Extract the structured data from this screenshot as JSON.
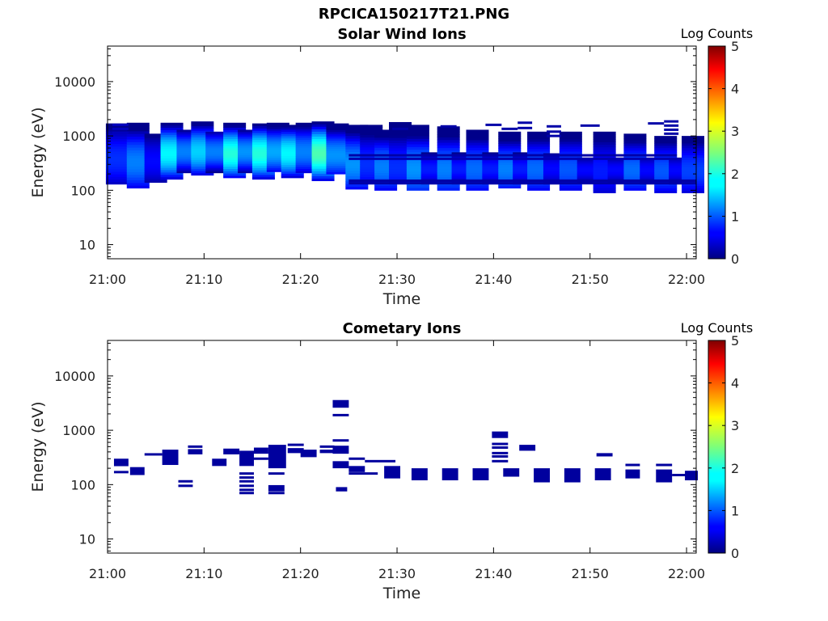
{
  "figure": {
    "title": "RPCICA150217T21.PNG"
  },
  "colors": {
    "axis": "#000000",
    "colorbar_map": "jet"
  },
  "chart_data": [
    {
      "type": "heatmap",
      "title": "Solar Wind Ions",
      "xlabel": "Time",
      "ylabel": "Energy (eV)",
      "xlim": [
        "21:00",
        "22:01"
      ],
      "x_ticks": [
        "21:00",
        "21:10",
        "21:20",
        "21:30",
        "21:40",
        "21:50",
        "22:00"
      ],
      "y_scale": "log",
      "ylim": [
        5.5,
        45000
      ],
      "y_ticks": [
        10,
        100,
        1000,
        10000
      ],
      "y_tick_labels": [
        "10",
        "100",
        "1000",
        "10000"
      ],
      "colorbar": {
        "label": "Log Counts",
        "range": [
          0,
          5
        ],
        "ticks": [
          "0",
          "1",
          "2",
          "3",
          "4",
          "5"
        ]
      },
      "columns": [
        {
          "t": "21:01:00",
          "e_min": 130,
          "e_max": 1700,
          "peak_e": 380,
          "peak": 0.8
        },
        {
          "t": "21:03:10",
          "e_min": 110,
          "e_max": 1750,
          "peak_e": 330,
          "peak": 1.2
        },
        {
          "t": "21:05:00",
          "e_min": 140,
          "e_max": 1100,
          "peak_e": 350,
          "peak": 0.6
        },
        {
          "t": "21:06:40",
          "e_min": 160,
          "e_max": 1750,
          "peak_e": 480,
          "peak": 1.8
        },
        {
          "t": "21:08:20",
          "e_min": 210,
          "e_max": 1300,
          "peak_e": 520,
          "peak": 1.2
        },
        {
          "t": "21:09:50",
          "e_min": 190,
          "e_max": 1850,
          "peak_e": 520,
          "peak": 1.6
        },
        {
          "t": "21:11:20",
          "e_min": 210,
          "e_max": 1200,
          "peak_e": 520,
          "peak": 1.2
        },
        {
          "t": "21:13:10",
          "e_min": 170,
          "e_max": 1750,
          "peak_e": 480,
          "peak": 2.0
        },
        {
          "t": "21:14:40",
          "e_min": 210,
          "e_max": 1300,
          "peak_e": 520,
          "peak": 1.3
        },
        {
          "t": "21:16:10",
          "e_min": 160,
          "e_max": 1700,
          "peak_e": 480,
          "peak": 2.0
        },
        {
          "t": "21:17:40",
          "e_min": 220,
          "e_max": 1750,
          "peak_e": 520,
          "peak": 1.4
        },
        {
          "t": "21:19:10",
          "e_min": 170,
          "e_max": 1600,
          "peak_e": 480,
          "peak": 1.8
        },
        {
          "t": "21:20:40",
          "e_min": 210,
          "e_max": 1750,
          "peak_e": 520,
          "peak": 1.2
        },
        {
          "t": "21:22:20",
          "e_min": 150,
          "e_max": 1850,
          "peak_e": 480,
          "peak": 2.2
        },
        {
          "t": "21:23:50",
          "e_min": 200,
          "e_max": 1700,
          "peak_e": 450,
          "peak": 1.3
        },
        {
          "t": "21:25:50",
          "e_min": 105,
          "e_max": 1600,
          "peak_e": 300,
          "peak": 1.3
        },
        {
          "t": "21:27:20",
          "e_min": 130,
          "e_max": 1600,
          "peak_e": 300,
          "peak": 0.8
        },
        {
          "t": "21:28:50",
          "e_min": 100,
          "e_max": 1300,
          "peak_e": 270,
          "peak": 1.2
        },
        {
          "t": "21:30:20",
          "e_min": 130,
          "e_max": 1800,
          "peak_e": 270,
          "peak": 0.8
        },
        {
          "t": "21:32:10",
          "e_min": 100,
          "e_max": 1600,
          "peak_e": 250,
          "peak": 1.3
        },
        {
          "t": "21:33:40",
          "e_min": 130,
          "e_max": 500,
          "peak_e": 250,
          "peak": 0.7
        },
        {
          "t": "21:35:20",
          "e_min": 100,
          "e_max": 1500,
          "peak_e": 250,
          "peak": 1.2
        },
        {
          "t": "21:36:50",
          "e_min": 130,
          "e_max": 500,
          "peak_e": 250,
          "peak": 0.7
        },
        {
          "t": "21:38:20",
          "e_min": 100,
          "e_max": 1300,
          "peak_e": 250,
          "peak": 1.1
        },
        {
          "t": "21:40:00",
          "e_min": 130,
          "e_max": 500,
          "peak_e": 250,
          "peak": 0.7
        },
        {
          "t": "21:41:40",
          "e_min": 110,
          "e_max": 1200,
          "peak_e": 250,
          "peak": 1.2
        },
        {
          "t": "21:43:10",
          "e_min": 130,
          "e_max": 500,
          "peak_e": 250,
          "peak": 0.7
        },
        {
          "t": "21:44:40",
          "e_min": 100,
          "e_max": 1200,
          "peak_e": 250,
          "peak": 1.1
        },
        {
          "t": "21:46:20",
          "e_min": 130,
          "e_max": 480,
          "peak_e": 250,
          "peak": 0.6
        },
        {
          "t": "21:48:00",
          "e_min": 100,
          "e_max": 1200,
          "peak_e": 250,
          "peak": 1.0
        },
        {
          "t": "21:49:50",
          "e_min": 140,
          "e_max": 400,
          "peak_e": 240,
          "peak": 0.6
        },
        {
          "t": "21:51:30",
          "e_min": 90,
          "e_max": 1200,
          "peak_e": 230,
          "peak": 0.7
        },
        {
          "t": "21:53:00",
          "e_min": 140,
          "e_max": 400,
          "peak_e": 240,
          "peak": 0.6
        },
        {
          "t": "21:54:40",
          "e_min": 100,
          "e_max": 1100,
          "peak_e": 240,
          "peak": 1.1
        },
        {
          "t": "21:56:20",
          "e_min": 130,
          "e_max": 400,
          "peak_e": 240,
          "peak": 0.6
        },
        {
          "t": "21:57:50",
          "e_min": 90,
          "e_max": 1000,
          "peak_e": 230,
          "peak": 1.0
        },
        {
          "t": "21:59:20",
          "e_min": 130,
          "e_max": 400,
          "peak_e": 240,
          "peak": 0.6
        },
        {
          "t": "22:00:40",
          "e_min": 90,
          "e_max": 1000,
          "peak_e": 230,
          "peak": 0.9
        }
      ],
      "lines": [
        {
          "t0": "21:00:30",
          "t1": "21:02:10",
          "e": 1600,
          "v": 0.3
        },
        {
          "t0": "21:00:30",
          "t1": "21:02:10",
          "e": 1350,
          "v": 0.3
        },
        {
          "t0": "21:00:30",
          "t1": "21:02:10",
          "e": 1150,
          "v": 0.3
        },
        {
          "t0": "21:29:30",
          "t1": "21:31:10",
          "e": 1350,
          "v": 0.2
        },
        {
          "t0": "21:34:30",
          "t1": "21:36:10",
          "e": 1500,
          "v": 0.2
        },
        {
          "t0": "21:39:10",
          "t1": "21:40:50",
          "e": 1600,
          "v": 0.2
        },
        {
          "t0": "21:40:50",
          "t1": "21:42:30",
          "e": 1350,
          "v": 0.2
        },
        {
          "t0": "21:42:30",
          "t1": "21:44:00",
          "e": 1750,
          "v": 0.2
        },
        {
          "t0": "21:42:30",
          "t1": "21:44:00",
          "e": 1400,
          "v": 0.2
        },
        {
          "t0": "21:45:30",
          "t1": "21:47:00",
          "e": 1500,
          "v": 0.2
        },
        {
          "t0": "21:45:30",
          "t1": "21:47:00",
          "e": 1200,
          "v": 0.2
        },
        {
          "t0": "21:45:30",
          "t1": "21:47:00",
          "e": 1000,
          "v": 0.2
        },
        {
          "t0": "21:49:00",
          "t1": "21:51:00",
          "e": 1550,
          "v": 0.2
        },
        {
          "t0": "21:56:00",
          "t1": "21:57:40",
          "e": 1700,
          "v": 0.2
        },
        {
          "t0": "21:57:40",
          "t1": "21:59:10",
          "e": 1850,
          "v": 0.2
        },
        {
          "t0": "21:57:40",
          "t1": "21:59:10",
          "e": 1550,
          "v": 0.2
        },
        {
          "t0": "21:57:40",
          "t1": "21:59:10",
          "e": 1300,
          "v": 0.2
        },
        {
          "t0": "21:57:40",
          "t1": "21:59:10",
          "e": 1100,
          "v": 0.2
        },
        {
          "t0": "21:25:00",
          "t1": "21:59:00",
          "e": 440,
          "v": 0.2
        },
        {
          "t0": "21:25:00",
          "t1": "21:59:00",
          "e": 380,
          "v": 0.25
        },
        {
          "t0": "21:25:00",
          "t1": "22:01:00",
          "e": 150,
          "v": 0.2
        },
        {
          "t0": "21:25:00",
          "t1": "22:01:00",
          "e": 135,
          "v": 0.2
        }
      ]
    },
    {
      "type": "heatmap",
      "title": "Cometary Ions",
      "xlabel": "Time",
      "ylabel": "Energy (eV)",
      "xlim": [
        "21:00",
        "22:01"
      ],
      "x_ticks": [
        "21:00",
        "21:10",
        "21:20",
        "21:30",
        "21:40",
        "21:50",
        "22:00"
      ],
      "y_scale": "log",
      "ylim": [
        5.5,
        45000
      ],
      "y_ticks": [
        10,
        100,
        1000,
        10000
      ],
      "y_tick_labels": [
        "10",
        "100",
        "1000",
        "10000"
      ],
      "colorbar": {
        "label": "Log Counts",
        "range": [
          0,
          5
        ],
        "ticks": [
          "0",
          "1",
          "2",
          "3",
          "4",
          "5"
        ]
      },
      "blocks": [
        {
          "t0": "21:00:40",
          "t1": "21:02:10",
          "e0": 240,
          "e1": 300
        },
        {
          "t0": "21:02:20",
          "t1": "21:03:50",
          "e0": 150,
          "e1": 210
        },
        {
          "t0": "21:05:40",
          "t1": "21:07:20",
          "e0": 230,
          "e1": 440
        },
        {
          "t0": "21:08:20",
          "t1": "21:09:50",
          "e0": 360,
          "e1": 450
        },
        {
          "t0": "21:10:50",
          "t1": "21:12:20",
          "e0": 220,
          "e1": 300
        },
        {
          "t0": "21:12:00",
          "t1": "21:13:40",
          "e0": 360,
          "e1": 460
        },
        {
          "t0": "21:13:40",
          "t1": "21:15:10",
          "e0": 220,
          "e1": 420
        },
        {
          "t0": "21:15:10",
          "t1": "21:16:40",
          "e0": 370,
          "e1": 480
        },
        {
          "t0": "21:16:40",
          "t1": "21:18:30",
          "e0": 200,
          "e1": 540
        },
        {
          "t0": "21:16:40",
          "t1": "21:18:20",
          "e0": 75,
          "e1": 98
        },
        {
          "t0": "21:18:40",
          "t1": "21:20:20",
          "e0": 380,
          "e1": 470
        },
        {
          "t0": "21:20:00",
          "t1": "21:21:40",
          "e0": 320,
          "e1": 440
        },
        {
          "t0": "21:22:00",
          "t1": "21:23:30",
          "e0": 380,
          "e1": 440
        },
        {
          "t0": "21:23:20",
          "t1": "21:25:00",
          "e0": 2600,
          "e1": 3600
        },
        {
          "t0": "21:23:20",
          "t1": "21:25:00",
          "e0": 370,
          "e1": 520
        },
        {
          "t0": "21:23:20",
          "t1": "21:25:00",
          "e0": 200,
          "e1": 270
        },
        {
          "t0": "21:23:40",
          "t1": "21:24:50",
          "e0": 75,
          "e1": 90
        },
        {
          "t0": "21:25:00",
          "t1": "21:26:40",
          "e0": 170,
          "e1": 220
        },
        {
          "t0": "21:28:40",
          "t1": "21:30:20",
          "e0": 130,
          "e1": 220
        },
        {
          "t0": "21:31:30",
          "t1": "21:33:10",
          "e0": 120,
          "e1": 200
        },
        {
          "t0": "21:34:40",
          "t1": "21:36:20",
          "e0": 120,
          "e1": 200
        },
        {
          "t0": "21:37:50",
          "t1": "21:39:30",
          "e0": 120,
          "e1": 200
        },
        {
          "t0": "21:39:50",
          "t1": "21:41:30",
          "e0": 720,
          "e1": 950
        },
        {
          "t0": "21:41:00",
          "t1": "21:42:40",
          "e0": 140,
          "e1": 200
        },
        {
          "t0": "21:42:40",
          "t1": "21:44:20",
          "e0": 420,
          "e1": 540
        },
        {
          "t0": "21:44:10",
          "t1": "21:45:50",
          "e0": 110,
          "e1": 200
        },
        {
          "t0": "21:47:20",
          "t1": "21:49:00",
          "e0": 110,
          "e1": 200
        },
        {
          "t0": "21:50:30",
          "t1": "21:52:10",
          "e0": 120,
          "e1": 200
        },
        {
          "t0": "21:50:40",
          "t1": "21:52:20",
          "e0": 330,
          "e1": 380
        },
        {
          "t0": "21:53:40",
          "t1": "21:55:10",
          "e0": 130,
          "e1": 190
        },
        {
          "t0": "21:56:50",
          "t1": "21:58:30",
          "e0": 110,
          "e1": 190
        },
        {
          "t0": "21:59:50",
          "t1": "22:01:10",
          "e0": 120,
          "e1": 180
        }
      ],
      "lines": [
        {
          "t0": "21:00:40",
          "t1": "21:02:10",
          "e": 230
        },
        {
          "t0": "21:00:40",
          "t1": "21:02:10",
          "e": 170
        },
        {
          "t0": "21:03:50",
          "t1": "21:05:40",
          "e": 360
        },
        {
          "t0": "21:07:20",
          "t1": "21:08:50",
          "e": 115
        },
        {
          "t0": "21:07:20",
          "t1": "21:08:50",
          "e": 95
        },
        {
          "t0": "21:08:20",
          "t1": "21:09:50",
          "e": 500
        },
        {
          "t0": "21:13:40",
          "t1": "21:15:10",
          "e": 160
        },
        {
          "t0": "21:13:40",
          "t1": "21:15:10",
          "e": 135
        },
        {
          "t0": "21:13:40",
          "t1": "21:15:10",
          "e": 115
        },
        {
          "t0": "21:13:40",
          "t1": "21:15:10",
          "e": 95
        },
        {
          "t0": "21:13:40",
          "t1": "21:15:10",
          "e": 80
        },
        {
          "t0": "21:13:40",
          "t1": "21:15:10",
          "e": 70
        },
        {
          "t0": "21:15:10",
          "t1": "21:16:40",
          "e": 300
        },
        {
          "t0": "21:16:40",
          "t1": "21:18:20",
          "e": 160
        },
        {
          "t0": "21:16:40",
          "t1": "21:18:20",
          "e": 70
        },
        {
          "t0": "21:18:40",
          "t1": "21:20:20",
          "e": 540
        },
        {
          "t0": "21:22:00",
          "t1": "21:23:30",
          "e": 500
        },
        {
          "t0": "21:23:20",
          "t1": "21:25:00",
          "e": 1900
        },
        {
          "t0": "21:23:20",
          "t1": "21:25:00",
          "e": 650
        },
        {
          "t0": "21:25:00",
          "t1": "21:26:40",
          "e": 300
        },
        {
          "t0": "21:25:00",
          "t1": "21:28:00",
          "e": 160
        },
        {
          "t0": "21:26:40",
          "t1": "21:29:50",
          "e": 270
        },
        {
          "t0": "21:39:50",
          "t1": "21:41:30",
          "e": 560
        },
        {
          "t0": "21:39:50",
          "t1": "21:41:30",
          "e": 480
        },
        {
          "t0": "21:39:50",
          "t1": "21:41:30",
          "e": 380
        },
        {
          "t0": "21:39:50",
          "t1": "21:41:30",
          "e": 330
        },
        {
          "t0": "21:39:50",
          "t1": "21:41:30",
          "e": 270
        },
        {
          "t0": "21:53:40",
          "t1": "21:55:10",
          "e": 230
        },
        {
          "t0": "21:56:50",
          "t1": "21:58:30",
          "e": 230
        },
        {
          "t0": "21:58:30",
          "t1": "22:00:00",
          "e": 150
        }
      ]
    }
  ]
}
